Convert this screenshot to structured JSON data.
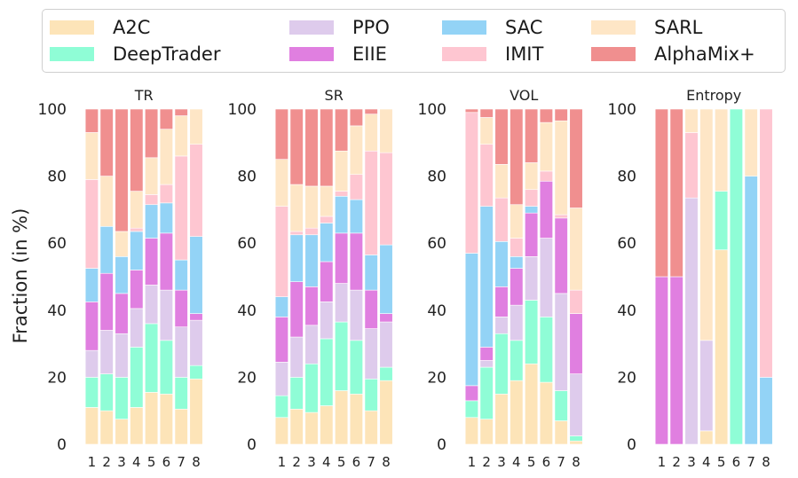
{
  "figure": {
    "ylabel": "Fraction (in %)"
  },
  "legend": {
    "items": [
      {
        "label": "A2C",
        "color": "#fde4b8"
      },
      {
        "label": "DeepTrader",
        "color": "#8ffdd6"
      },
      {
        "label": "PPO",
        "color": "#decbec"
      },
      {
        "label": "EIIE",
        "color": "#e07fe0"
      },
      {
        "label": "SAC",
        "color": "#93d3f6"
      },
      {
        "label": "IMIT",
        "color": "#fec6d1"
      },
      {
        "label": "SARL",
        "color": "#fee6c6"
      },
      {
        "label": "AlphaMix+",
        "color": "#f08f8f"
      }
    ]
  },
  "chart_data": [
    {
      "type": "bar",
      "stacked": true,
      "title": "TR",
      "categories": [
        "1",
        "2",
        "3",
        "4",
        "5",
        "6",
        "7",
        "8"
      ],
      "ylim": [
        0,
        100
      ],
      "yticks": [
        0,
        20,
        40,
        60,
        80,
        100
      ],
      "series": [
        {
          "name": "A2C",
          "values": [
            11,
            10,
            7.5,
            11,
            15.5,
            15,
            10.5,
            19.5
          ]
        },
        {
          "name": "DeepTrader",
          "values": [
            9,
            11,
            12.5,
            18,
            20.5,
            16,
            9.5,
            4
          ]
        },
        {
          "name": "PPO",
          "values": [
            8,
            13,
            13,
            11.5,
            11.5,
            15,
            15,
            13.5
          ]
        },
        {
          "name": "EIIE",
          "values": [
            14.5,
            17,
            12,
            11.5,
            14,
            17,
            11,
            2
          ]
        },
        {
          "name": "SAC",
          "values": [
            10,
            14,
            11,
            11.5,
            10,
            9,
            9,
            23
          ]
        },
        {
          "name": "IMIT",
          "values": [
            26.5,
            0,
            0,
            1,
            3,
            5.5,
            31,
            27.5
          ]
        },
        {
          "name": "SARL",
          "values": [
            14,
            15,
            7.5,
            11,
            11,
            16.5,
            12,
            10.5
          ]
        },
        {
          "name": "AlphaMix+",
          "values": [
            7,
            20,
            36.5,
            24.5,
            14.5,
            6,
            2,
            0
          ]
        }
      ]
    },
    {
      "type": "bar",
      "stacked": true,
      "title": "SR",
      "categories": [
        "1",
        "2",
        "3",
        "4",
        "5",
        "6",
        "7",
        "8"
      ],
      "ylim": [
        0,
        100
      ],
      "yticks": [
        0,
        20,
        40,
        60,
        80,
        100
      ],
      "series": [
        {
          "name": "A2C",
          "values": [
            8,
            10.5,
            9.5,
            11.5,
            16,
            15,
            10,
            19
          ]
        },
        {
          "name": "DeepTrader",
          "values": [
            6.5,
            9.5,
            14.5,
            20,
            20.5,
            16,
            9.5,
            4
          ]
        },
        {
          "name": "PPO",
          "values": [
            10,
            12,
            11.5,
            11,
            11.5,
            15,
            15,
            13.5
          ]
        },
        {
          "name": "EIIE",
          "values": [
            13.5,
            16.5,
            11.5,
            12,
            15,
            17,
            11.5,
            2.5
          ]
        },
        {
          "name": "SAC",
          "values": [
            6,
            14,
            15.5,
            11.5,
            11,
            10,
            10.5,
            20.5
          ]
        },
        {
          "name": "IMIT",
          "values": [
            27,
            1,
            2,
            2,
            1.5,
            7.5,
            31,
            27.5
          ]
        },
        {
          "name": "SARL",
          "values": [
            14,
            14,
            12.5,
            9,
            12,
            14.5,
            11,
            13
          ]
        },
        {
          "name": "AlphaMix+",
          "values": [
            15,
            22.5,
            23,
            23,
            12.5,
            5,
            1.5,
            0
          ]
        }
      ]
    },
    {
      "type": "bar",
      "stacked": true,
      "title": "VOL",
      "categories": [
        "1",
        "2",
        "3",
        "4",
        "5",
        "6",
        "7",
        "8"
      ],
      "ylim": [
        0,
        100
      ],
      "yticks": [
        0,
        20,
        40,
        60,
        80,
        100
      ],
      "series": [
        {
          "name": "A2C",
          "values": [
            8,
            7.5,
            15,
            19,
            24,
            18.5,
            7,
            1
          ]
        },
        {
          "name": "DeepTrader",
          "values": [
            5,
            15.5,
            18,
            12,
            19,
            19.5,
            9,
            1.5
          ]
        },
        {
          "name": "PPO",
          "values": [
            0,
            2,
            5,
            10.5,
            13,
            23.5,
            29,
            18.5
          ]
        },
        {
          "name": "EIIE",
          "values": [
            4.5,
            4,
            9,
            11,
            13,
            17,
            22.5,
            18
          ]
        },
        {
          "name": "SAC",
          "values": [
            39.5,
            42,
            13.5,
            3.5,
            2,
            0,
            0,
            0
          ]
        },
        {
          "name": "IMIT",
          "values": [
            42,
            18.5,
            13,
            5.5,
            5,
            3,
            1,
            7
          ]
        },
        {
          "name": "SARL",
          "values": [
            0,
            8,
            10,
            10,
            8,
            14.5,
            28,
            24.5
          ]
        },
        {
          "name": "AlphaMix+",
          "values": [
            1,
            2.5,
            16.5,
            28.5,
            16,
            4,
            3.5,
            29.5
          ]
        }
      ]
    },
    {
      "type": "bar",
      "stacked": true,
      "title": "Entropy",
      "categories": [
        "1",
        "2",
        "3",
        "4",
        "5",
        "6",
        "7",
        "8"
      ],
      "ylim": [
        0,
        100
      ],
      "yticks": [
        0,
        20,
        40,
        60,
        80,
        100
      ],
      "series": [
        {
          "name": "A2C",
          "values": [
            0,
            0,
            0,
            4,
            58,
            0,
            0,
            0
          ]
        },
        {
          "name": "DeepTrader",
          "values": [
            0,
            0,
            0,
            0,
            17.5,
            100,
            0,
            0
          ]
        },
        {
          "name": "PPO",
          "values": [
            0,
            0,
            73.5,
            27,
            0,
            0,
            0,
            0
          ]
        },
        {
          "name": "EIIE",
          "values": [
            50,
            50,
            0,
            0,
            0,
            0,
            0,
            0
          ]
        },
        {
          "name": "SAC",
          "values": [
            0,
            0,
            0,
            0,
            0,
            0,
            80,
            20
          ]
        },
        {
          "name": "IMIT",
          "values": [
            0,
            0,
            19.5,
            0,
            0,
            0,
            0,
            80
          ]
        },
        {
          "name": "SARL",
          "values": [
            0,
            0,
            7,
            69,
            24.5,
            0,
            20,
            0
          ]
        },
        {
          "name": "AlphaMix+",
          "values": [
            50,
            50,
            0,
            0,
            0,
            0,
            0,
            0
          ]
        }
      ]
    }
  ]
}
